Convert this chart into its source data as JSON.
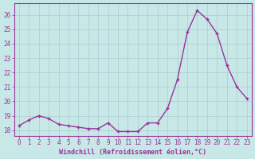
{
  "x": [
    0,
    1,
    2,
    3,
    4,
    5,
    6,
    7,
    8,
    9,
    10,
    11,
    12,
    13,
    14,
    15,
    16,
    17,
    18,
    19,
    20,
    21,
    22,
    23
  ],
  "y": [
    18.3,
    18.7,
    19.0,
    18.8,
    18.4,
    18.3,
    18.2,
    18.1,
    18.1,
    18.5,
    17.9,
    17.9,
    17.9,
    18.5,
    18.5,
    19.5,
    21.5,
    24.8,
    26.3,
    25.7,
    24.7,
    22.5,
    21.0,
    20.2
  ],
  "line_color": "#993399",
  "marker": "+",
  "marker_size": 3.5,
  "bg_color": "#c8e8e8",
  "grid_color": "#aacccc",
  "xlabel": "Windchill (Refroidissement éolien,°C)",
  "ylim": [
    17.6,
    26.8
  ],
  "xlim": [
    -0.5,
    23.5
  ],
  "yticks": [
    18,
    19,
    20,
    21,
    22,
    23,
    24,
    25,
    26
  ],
  "xticks": [
    0,
    1,
    2,
    3,
    4,
    5,
    6,
    7,
    8,
    9,
    10,
    11,
    12,
    13,
    14,
    15,
    16,
    17,
    18,
    19,
    20,
    21,
    22,
    23
  ],
  "tick_color": "#993399",
  "label_color": "#993399",
  "font_family": "monospace",
  "tick_fontsize": 5.5,
  "xlabel_fontsize": 6.0,
  "linewidth": 1.0,
  "marker_lw": 1.0
}
